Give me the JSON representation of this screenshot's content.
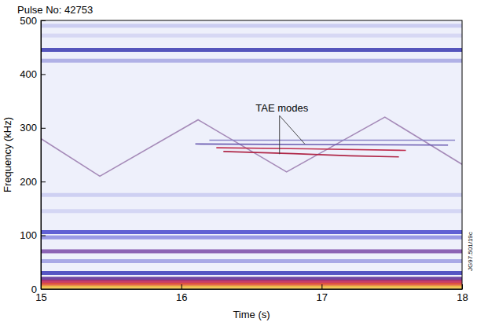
{
  "chart_data": {
    "type": "spectrogram",
    "title": "Pulse No: 42753",
    "x_label": "Time (s)",
    "y_label": "Frequency (kHz)",
    "side_label": "JG97.501/19c",
    "xlim": [
      15,
      18
    ],
    "xticks": [
      15,
      16,
      17,
      18
    ],
    "ylim": [
      0,
      500
    ],
    "yticks": [
      0,
      100,
      200,
      300,
      400,
      500
    ],
    "series": [
      {
        "type": "band",
        "color": "#c4c7ee",
        "x": [
          15,
          18
        ],
        "values": [
          490,
          490
        ]
      },
      {
        "type": "band",
        "color": "#d2d4f2",
        "x": [
          15,
          18
        ],
        "values": [
          472,
          472
        ]
      },
      {
        "type": "band",
        "color": "#3a3ab0",
        "x": [
          15,
          18
        ],
        "values": [
          445,
          445
        ]
      },
      {
        "type": "band",
        "color": "#a4a6e2",
        "x": [
          15,
          18
        ],
        "values": [
          425,
          425
        ]
      },
      {
        "type": "band",
        "color": "#c8caf0",
        "x": [
          15,
          18
        ],
        "values": [
          175,
          175
        ]
      },
      {
        "type": "band",
        "color": "#cfd1f2",
        "x": [
          15,
          18
        ],
        "values": [
          145,
          145
        ]
      },
      {
        "type": "band",
        "color": "#4646cc",
        "x": [
          15,
          18
        ],
        "values": [
          106,
          106
        ]
      },
      {
        "type": "band",
        "color": "#8a8ae0",
        "x": [
          15,
          18
        ],
        "values": [
          96,
          96
        ]
      },
      {
        "type": "band",
        "color": "#7a4aa8",
        "x": [
          15,
          18
        ],
        "values": [
          70,
          70
        ]
      },
      {
        "type": "band",
        "color": "#9c9ce2",
        "x": [
          15,
          18
        ],
        "values": [
          52,
          52
        ]
      },
      {
        "type": "band",
        "color": "#3a3ab8",
        "x": [
          15,
          18
        ],
        "values": [
          30,
          30
        ]
      },
      {
        "type": "band",
        "color": "#5a2a90",
        "x": [
          15,
          18
        ],
        "values": [
          19,
          19
        ]
      },
      {
        "type": "band",
        "color": "#c02050",
        "x": [
          15,
          18
        ],
        "values": [
          13,
          13
        ]
      },
      {
        "type": "band",
        "color": "#e05030",
        "x": [
          15,
          18
        ],
        "values": [
          8,
          8
        ]
      },
      {
        "type": "band",
        "color": "#f0c040",
        "x": [
          15,
          18
        ],
        "values": [
          3,
          3
        ]
      },
      {
        "type": "line",
        "color": "#a58ab8",
        "x": [
          15,
          15.42,
          16.12,
          16.75,
          17.45,
          18
        ],
        "values": [
          280,
          210,
          315,
          218,
          320,
          232
        ]
      },
      {
        "type": "line",
        "color": "#8a84c8",
        "x": [
          16.2,
          17.95
        ],
        "values": [
          277,
          277
        ]
      },
      {
        "type": "line",
        "color": "#6a5ab0",
        "x": [
          16.1,
          16.9,
          17.9
        ],
        "values": [
          270,
          269,
          268
        ]
      },
      {
        "type": "line",
        "color": "#c03050",
        "x": [
          16.25,
          16.9,
          17.6
        ],
        "values": [
          263,
          261,
          258
        ]
      },
      {
        "type": "line",
        "color": "#b02848",
        "x": [
          16.3,
          16.8,
          17.2,
          17.55
        ],
        "values": [
          256,
          252,
          248,
          246
        ]
      }
    ],
    "annotations": [
      {
        "text": "TAE modes",
        "x": 16.53,
        "y": 330,
        "arrows": [
          [
            16.88,
            270
          ],
          [
            16.7,
            251
          ]
        ]
      }
    ]
  }
}
